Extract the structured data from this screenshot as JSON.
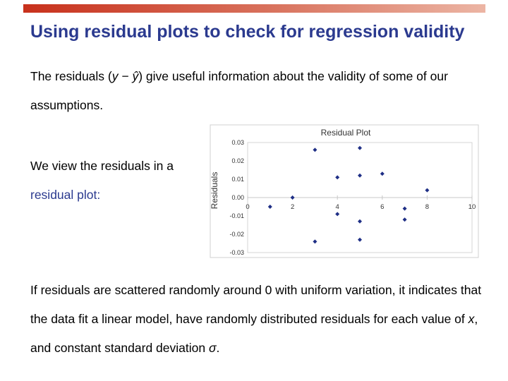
{
  "slide": {
    "title": "Using residual plots to check for regression validity",
    "p1_a": "The residuals (",
    "p1_y": "y",
    "p1_minus": " − ",
    "p1_yhat": "ŷ",
    "p1_b": ") give useful information about the validity of some of our assumptions.",
    "p2_a": "We view the residuals in a ",
    "p2_b": "residual plot:",
    "p3_a": "If residuals are scattered randomly around 0 with uniform variation, it indicates that the data fit a linear model, have randomly distributed residuals for each value of ",
    "p3_x": "x",
    "p3_b": ", and constant standard deviation ",
    "p3_sigma": "σ",
    "p3_c": "."
  },
  "colors": {
    "title": "#2b3a8f",
    "accent_bar": "#c8311c",
    "point": "#1f2f86"
  },
  "chart_data": {
    "type": "scatter",
    "title": "Residual Plot",
    "xlabel": "",
    "ylabel": "Residuals",
    "xlim": [
      0,
      10
    ],
    "ylim": [
      -0.03,
      0.03
    ],
    "x_ticks": [
      "0",
      "2",
      "4",
      "6",
      "8",
      "10"
    ],
    "y_ticks": [
      "0.03",
      "0.02",
      "0.01",
      "0.00",
      "-0.01",
      "-0.02",
      "-0.03"
    ],
    "grid": false,
    "points": [
      {
        "x": 1,
        "y": -0.005
      },
      {
        "x": 2,
        "y": 0.0
      },
      {
        "x": 3,
        "y": 0.026
      },
      {
        "x": 3,
        "y": -0.024
      },
      {
        "x": 4,
        "y": 0.011
      },
      {
        "x": 4,
        "y": -0.009
      },
      {
        "x": 5,
        "y": 0.027
      },
      {
        "x": 5,
        "y": 0.012
      },
      {
        "x": 5,
        "y": -0.013
      },
      {
        "x": 5,
        "y": -0.023
      },
      {
        "x": 6,
        "y": 0.013
      },
      {
        "x": 7,
        "y": -0.006
      },
      {
        "x": 7,
        "y": -0.012
      },
      {
        "x": 8,
        "y": 0.004
      }
    ]
  }
}
